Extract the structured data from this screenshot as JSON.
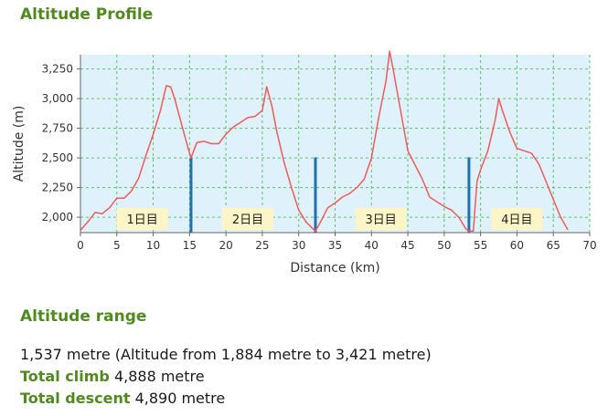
{
  "profile_title": "Altitude Profile",
  "range_title": "Altitude range",
  "stats": {
    "range_text": "1,537 metre (Altitude from 1,884 metre to 3,421 metre)",
    "climb_label": "Total climb",
    "climb_value": "4,888 metre",
    "descent_label": "Total descent",
    "descent_value": "4,890 metre"
  },
  "colors": {
    "line": "#f05a5a",
    "plot_bg": "#dff2fb",
    "grid": "#5ec16a",
    "marker": "#1f6fb5",
    "day_label_bg": "#fdf5c7",
    "title": "#4f8a1e"
  },
  "chart_data": {
    "type": "line",
    "xlabel": "Distance (km)",
    "ylabel": "Altitude (m)",
    "xlim": [
      0,
      70
    ],
    "ylim": [
      1870,
      3370
    ],
    "x_ticks": [
      0,
      5,
      10,
      15,
      20,
      25,
      30,
      35,
      40,
      45,
      50,
      55,
      60,
      65,
      70
    ],
    "y_ticks": [
      2000,
      2250,
      2500,
      2750,
      3000,
      3250
    ],
    "y_tick_labels": [
      "2,000",
      "2,250",
      "2,500",
      "2,750",
      "3,000",
      "3,250"
    ],
    "grid": true,
    "series": [
      {
        "x": [
          0,
          1,
          2,
          3,
          4,
          5,
          6,
          7,
          8,
          9,
          10,
          11,
          11.8,
          12.4,
          13,
          14,
          14.8,
          15.2,
          16,
          17,
          18,
          19,
          20,
          21,
          22,
          23,
          24,
          25,
          25.6,
          26.3,
          27,
          28,
          29,
          30,
          31,
          32,
          32.3,
          33,
          34,
          35,
          36,
          37,
          38,
          39,
          40,
          41,
          42,
          42.5,
          43,
          44,
          45,
          46,
          47,
          48,
          49,
          50,
          51,
          52,
          53,
          53.4,
          54,
          54.5,
          55,
          56,
          57,
          57.5,
          58,
          59,
          60,
          61,
          62,
          63,
          64,
          65,
          66,
          67
        ],
        "y": [
          1890,
          1960,
          2040,
          2030,
          2080,
          2160,
          2160,
          2220,
          2330,
          2520,
          2700,
          2900,
          3110,
          3100,
          2990,
          2760,
          2580,
          2500,
          2630,
          2640,
          2620,
          2620,
          2700,
          2760,
          2800,
          2840,
          2850,
          2900,
          3100,
          2940,
          2720,
          2460,
          2250,
          2060,
          1960,
          1900,
          1884,
          1960,
          2080,
          2120,
          2170,
          2200,
          2250,
          2320,
          2500,
          2840,
          3150,
          3400,
          3240,
          2900,
          2560,
          2440,
          2320,
          2170,
          2130,
          2090,
          2060,
          2000,
          1900,
          1884,
          1884,
          2300,
          2400,
          2560,
          2820,
          3000,
          2900,
          2720,
          2580,
          2560,
          2540,
          2450,
          2300,
          2150,
          2000,
          1894
        ]
      }
    ],
    "day_markers": [
      15.2,
      32.3,
      53.4
    ],
    "day_labels": [
      {
        "text": "1日目",
        "x": 8.5
      },
      {
        "text": "2日目",
        "x": 23.0
      },
      {
        "text": "3日目",
        "x": 41.3
      },
      {
        "text": "4日目",
        "x": 60.0
      }
    ]
  }
}
